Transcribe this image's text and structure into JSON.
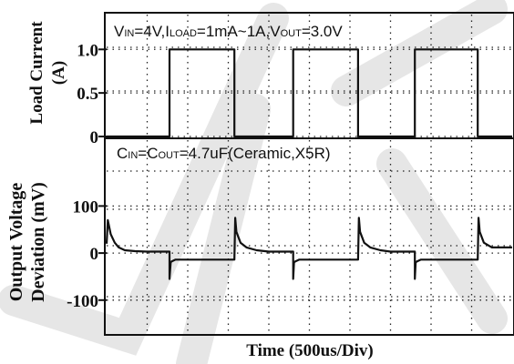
{
  "chart_data": [
    {
      "type": "line",
      "title": "",
      "ylabel_lines": [
        "Load Current",
        "(A)"
      ],
      "yticks": [
        "1.0",
        "0.5",
        "0"
      ],
      "ytick_values": [
        1.0,
        0.5,
        0
      ],
      "ylim": [
        0,
        1.4
      ],
      "x_divisions": 10,
      "annotation_parts": [
        {
          "text": "V",
          "size": "big"
        },
        {
          "text": "IN",
          "size": "small"
        },
        {
          "text": "=4V,I",
          "size": "big"
        },
        {
          "text": "LOAD",
          "size": "small"
        },
        {
          "text": "=1mA~1A,V",
          "size": "big"
        },
        {
          "text": "OUT",
          "size": "small"
        },
        {
          "text": "=3.0V",
          "size": "big"
        }
      ],
      "series": [
        {
          "x": [
            0,
            1.55,
            1.55,
            3.15,
            3.15,
            4.6,
            4.6,
            6.2,
            6.2,
            7.6,
            7.6,
            9.15,
            9.15,
            10
          ],
          "y": [
            0.0,
            0.0,
            1.0,
            1.0,
            0.0,
            0.0,
            1.0,
            1.0,
            0.0,
            0.0,
            1.0,
            1.0,
            0.0,
            0.0
          ]
        }
      ]
    },
    {
      "type": "line",
      "title": "",
      "ylabel_lines": [
        "Output Voltage",
        "Deviation (mV)"
      ],
      "yticks": [
        "100",
        "0",
        "-100"
      ],
      "ytick_values": [
        100,
        0,
        -100
      ],
      "ylim": [
        -170,
        240
      ],
      "x_divisions": 10,
      "annotation_parts": [
        {
          "text": "C",
          "size": "big"
        },
        {
          "text": "IN",
          "size": "small"
        },
        {
          "text": "=C",
          "size": "big"
        },
        {
          "text": "OUT",
          "size": "small"
        },
        {
          "text": "=4.7uF(Ceramic,X5R)",
          "size": "big"
        }
      ],
      "series": [
        {
          "x": [
            0,
            0.03,
            0.1,
            0.2,
            0.3,
            0.45,
            0.7,
            1.0,
            1.3,
            1.55,
            1.55,
            1.58,
            1.6,
            1.7,
            2.0,
            2.5,
            3.0,
            3.15,
            3.17,
            3.2,
            3.3,
            3.45,
            3.7,
            4.0,
            4.3,
            4.6,
            4.6,
            4.62,
            4.65,
            4.75,
            5.0,
            5.5,
            6.0,
            6.2,
            6.22,
            6.25,
            6.35,
            6.5,
            6.75,
            7.0,
            7.3,
            7.6,
            7.6,
            7.62,
            7.65,
            7.75,
            8.0,
            8.5,
            9.0,
            9.15,
            9.17,
            9.2,
            9.3,
            9.5,
            10
          ],
          "y": [
            20,
            70,
            40,
            22,
            12,
            6,
            4,
            3,
            3,
            3,
            -55,
            -20,
            -18,
            -14,
            -14,
            -14,
            -14,
            -14,
            75,
            45,
            22,
            12,
            6,
            3,
            3,
            3,
            -55,
            -20,
            -18,
            -14,
            -14,
            -14,
            -14,
            -14,
            75,
            45,
            22,
            12,
            6,
            3,
            3,
            3,
            -55,
            -20,
            -18,
            -14,
            -14,
            -14,
            -14,
            -14,
            75,
            45,
            22,
            12,
            12
          ]
        }
      ]
    }
  ],
  "xlabel": "Time (500us/Div)"
}
